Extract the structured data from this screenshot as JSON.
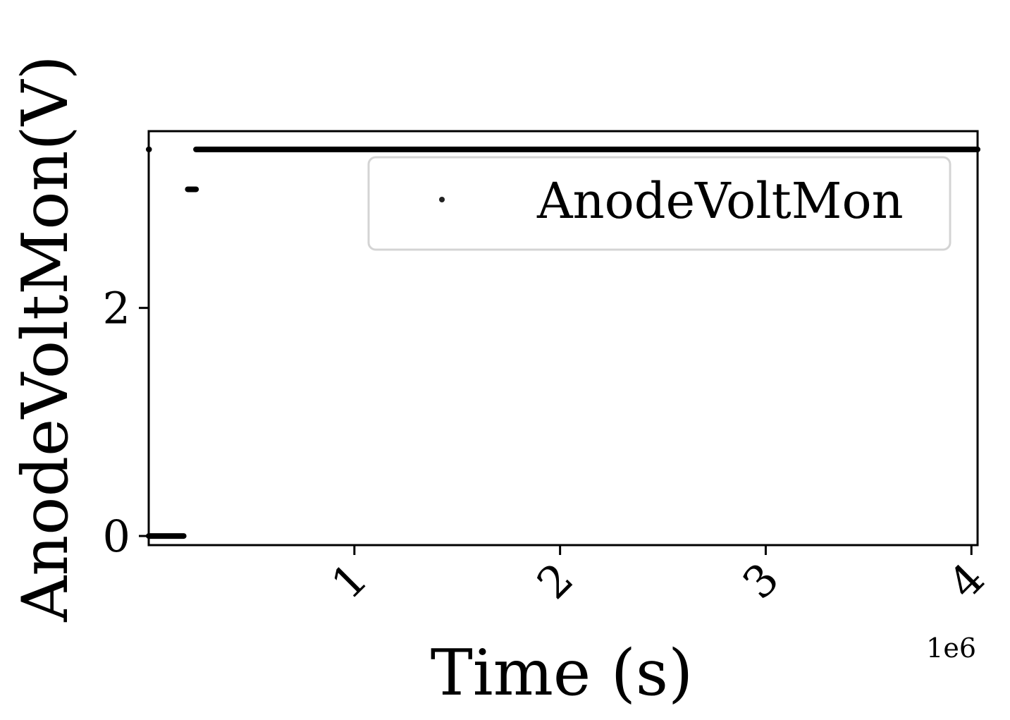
{
  "chart_data": {
    "type": "scatter",
    "title": "",
    "xlabel": "Time (s)",
    "ylabel": "AnodeVoltMon(V)",
    "x_offset_label": "1e6",
    "x_scale_factor": 1000000,
    "xlim": [
      0,
      4030000
    ],
    "ylim": [
      -0.08,
      3.55
    ],
    "x_ticks": [
      1000000,
      2000000,
      3000000,
      4000000
    ],
    "x_tick_labels": [
      "1",
      "2",
      "3",
      "4"
    ],
    "y_ticks": [
      0,
      2
    ],
    "y_tick_labels": [
      "0",
      "2"
    ],
    "grid": false,
    "legend_position": "top-right",
    "marker_color": "#000000",
    "series": [
      {
        "name": "AnodeVoltMon",
        "segments": [
          {
            "x_start": 0,
            "x_end": 0,
            "y": 3.39
          },
          {
            "x_start": 0,
            "x_end": 170000,
            "y": 0.0
          },
          {
            "x_start": 190000,
            "x_end": 230000,
            "y": 3.04
          },
          {
            "x_start": 230000,
            "x_end": 4030000,
            "y": 3.39
          }
        ]
      }
    ]
  }
}
